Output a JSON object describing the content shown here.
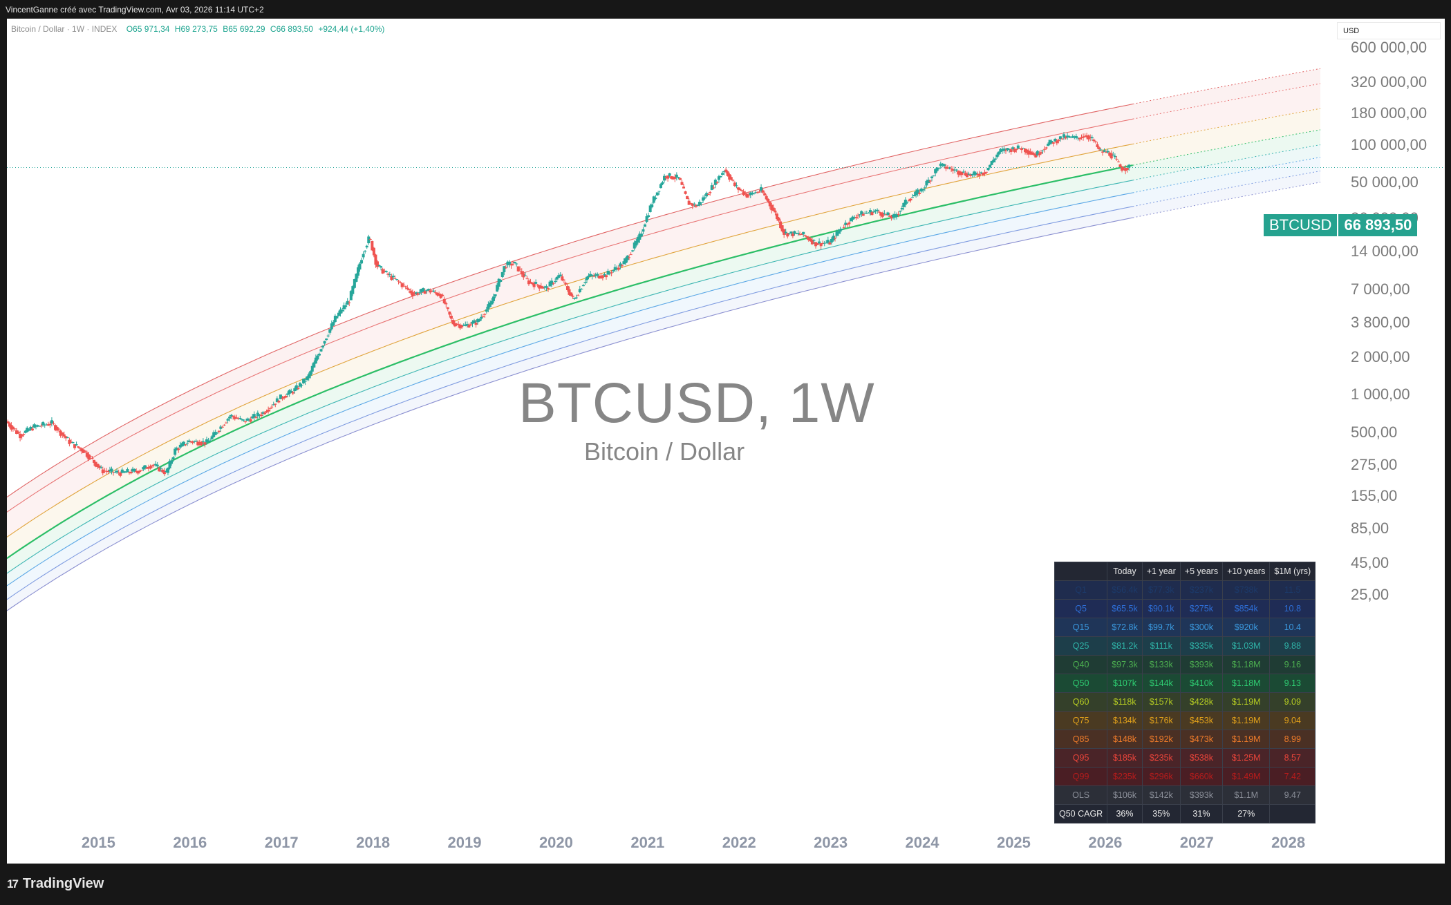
{
  "header": {
    "credit": "VincentGanne créé avec TradingView.com, Avr 03, 2026 11:14 UTC+2"
  },
  "legend": {
    "symbol": "Bitcoin / Dollar · 1W · INDEX",
    "open": "O65 971,34",
    "high": "H69 273,75",
    "low": "B65 692,29",
    "close": "C66 893,50",
    "change": "+924,44 (+1,40%)"
  },
  "currency_button": "USD",
  "watermark": {
    "title": "BTCUSD, 1W",
    "subtitle": "Bitcoin / Dollar"
  },
  "current_price": {
    "symbol": "BTCUSD",
    "value": "66 893,50",
    "color": "#26a69a"
  },
  "footer": {
    "logo_text": "TradingView",
    "logo_mark": "17"
  },
  "chart_data": {
    "type": "candlestick",
    "scale": "log",
    "price_axis_labels": [
      "600 000,00",
      "320 000,00",
      "180 000,00",
      "100 000,00",
      "50 000,00",
      "26 000,00",
      "14 000,00",
      "7 000,00",
      "3 800,00",
      "2 000,00",
      "1 000,00",
      "500,00",
      "275,00",
      "155,00",
      "85,00",
      "45,00",
      "25,00"
    ],
    "time_axis_labels": [
      "2015",
      "2016",
      "2017",
      "2018",
      "2019",
      "2020",
      "2021",
      "2022",
      "2023",
      "2024",
      "2025",
      "2026",
      "2027",
      "2028"
    ],
    "time_range": [
      2014.0,
      2028.35
    ],
    "up_color": "#26a69a",
    "down_color": "#ef5350",
    "price_path": [
      [
        2014.0,
        620
      ],
      [
        2014.15,
        480
      ],
      [
        2014.3,
        560
      ],
      [
        2014.5,
        600
      ],
      [
        2014.7,
        420
      ],
      [
        2014.85,
        360
      ],
      [
        2015.05,
        250
      ],
      [
        2015.25,
        240
      ],
      [
        2015.45,
        250
      ],
      [
        2015.6,
        280
      ],
      [
        2015.75,
        240
      ],
      [
        2015.85,
        370
      ],
      [
        2016.0,
        430
      ],
      [
        2016.2,
        420
      ],
      [
        2016.45,
        690
      ],
      [
        2016.6,
        620
      ],
      [
        2016.8,
        720
      ],
      [
        2017.0,
        960
      ],
      [
        2017.15,
        1100
      ],
      [
        2017.3,
        1400
      ],
      [
        2017.45,
        2500
      ],
      [
        2017.6,
        4200
      ],
      [
        2017.75,
        5800
      ],
      [
        2017.9,
        14000
      ],
      [
        2017.97,
        18500
      ],
      [
        2018.05,
        11000
      ],
      [
        2018.15,
        9500
      ],
      [
        2018.3,
        8000
      ],
      [
        2018.45,
        6500
      ],
      [
        2018.6,
        7000
      ],
      [
        2018.75,
        6400
      ],
      [
        2018.88,
        3800
      ],
      [
        2019.0,
        3600
      ],
      [
        2019.15,
        3900
      ],
      [
        2019.3,
        5500
      ],
      [
        2019.45,
        11000
      ],
      [
        2019.55,
        11500
      ],
      [
        2019.7,
        8200
      ],
      [
        2019.9,
        7200
      ],
      [
        2020.05,
        9200
      ],
      [
        2020.2,
        5800
      ],
      [
        2020.35,
        9000
      ],
      [
        2020.55,
        9200
      ],
      [
        2020.75,
        11500
      ],
      [
        2020.92,
        18500
      ],
      [
        2021.05,
        34000
      ],
      [
        2021.2,
        58000
      ],
      [
        2021.35,
        55000
      ],
      [
        2021.45,
        35000
      ],
      [
        2021.55,
        33000
      ],
      [
        2021.7,
        45000
      ],
      [
        2021.85,
        65000
      ],
      [
        2021.97,
        47000
      ],
      [
        2022.1,
        40000
      ],
      [
        2022.25,
        44000
      ],
      [
        2022.4,
        29000
      ],
      [
        2022.5,
        20000
      ],
      [
        2022.7,
        19500
      ],
      [
        2022.85,
        16500
      ],
      [
        2023.0,
        16800
      ],
      [
        2023.15,
        23000
      ],
      [
        2023.3,
        28000
      ],
      [
        2023.5,
        30000
      ],
      [
        2023.7,
        26500
      ],
      [
        2023.85,
        37000
      ],
      [
        2024.0,
        44000
      ],
      [
        2024.2,
        70000
      ],
      [
        2024.35,
        64000
      ],
      [
        2024.55,
        58000
      ],
      [
        2024.7,
        62000
      ],
      [
        2024.85,
        90000
      ],
      [
        2024.97,
        94000
      ],
      [
        2025.1,
        96000
      ],
      [
        2025.25,
        84000
      ],
      [
        2025.4,
        105000
      ],
      [
        2025.55,
        117000
      ],
      [
        2025.7,
        115000
      ],
      [
        2025.8,
        122000
      ],
      [
        2025.88,
        110000
      ],
      [
        2025.95,
        90000
      ],
      [
        2026.05,
        88000
      ],
      [
        2026.12,
        78000
      ],
      [
        2026.18,
        66000
      ],
      [
        2026.26,
        66893
      ]
    ],
    "bands": [
      {
        "name": "Q1",
        "color": "#8a8fd0",
        "offset": -0.42
      },
      {
        "name": "Q5",
        "color": "#7f9be0",
        "offset": -0.33
      },
      {
        "name": "Q15",
        "color": "#5aa7e6",
        "offset": -0.22
      },
      {
        "name": "Q25",
        "color": "#3bb5b2",
        "offset": -0.12
      },
      {
        "name": "Q50",
        "color": "#2cbe67",
        "offset": 0.0
      },
      {
        "name": "Q75",
        "color": "#e0a33a",
        "offset": 0.17
      },
      {
        "name": "Q95",
        "color": "#e87474",
        "offset": 0.37
      },
      {
        "name": "Q99",
        "color": "#e06363",
        "offset": 0.49
      }
    ],
    "table": {
      "headers": [
        "",
        "Today",
        "+1 year",
        "+5 years",
        "+10 years",
        "$1M (yrs)"
      ],
      "rows": [
        {
          "label": "Q1",
          "color": "#1c3a6a",
          "bg": "#1f2c4e",
          "cells": [
            "$56.4k",
            "$77.3k",
            "$237k",
            "$738k",
            "11.5"
          ]
        },
        {
          "label": "Q5",
          "color": "#2e6fd8",
          "bg": "#1f2c55",
          "cells": [
            "$65.5k",
            "$90.1k",
            "$275k",
            "$854k",
            "10.8"
          ]
        },
        {
          "label": "Q15",
          "color": "#3b9ae0",
          "bg": "#1f3558",
          "cells": [
            "$72.8k",
            "$99.7k",
            "$300k",
            "$920k",
            "10.4"
          ]
        },
        {
          "label": "Q25",
          "color": "#2fb3a7",
          "bg": "#1d3e4a",
          "cells": [
            "$81.2k",
            "$111k",
            "$335k",
            "$1.03M",
            "9.88"
          ]
        },
        {
          "label": "Q40",
          "color": "#4caf50",
          "bg": "#1f3c34",
          "cells": [
            "$97.3k",
            "$133k",
            "$393k",
            "$1.18M",
            "9.16"
          ]
        },
        {
          "label": "Q50",
          "color": "#2ecc71",
          "bg": "#1b4a34",
          "cells": [
            "$107k",
            "$144k",
            "$410k",
            "$1.18M",
            "9.13"
          ]
        },
        {
          "label": "Q60",
          "color": "#b5cc22",
          "bg": "#34402a",
          "cells": [
            "$118k",
            "$157k",
            "$428k",
            "$1.19M",
            "9.09"
          ]
        },
        {
          "label": "Q75",
          "color": "#e3a21a",
          "bg": "#4a3a22",
          "cells": [
            "$134k",
            "$176k",
            "$453k",
            "$1.19M",
            "9.04"
          ]
        },
        {
          "label": "Q85",
          "color": "#f07c2a",
          "bg": "#4a3024",
          "cells": [
            "$148k",
            "$192k",
            "$473k",
            "$1.19M",
            "8.99"
          ]
        },
        {
          "label": "Q95",
          "color": "#e8443a",
          "bg": "#4a2428",
          "cells": [
            "$185k",
            "$235k",
            "$538k",
            "$1.25M",
            "8.57"
          ]
        },
        {
          "label": "Q99",
          "color": "#b71c1c",
          "bg": "#4a1e24",
          "cells": [
            "$235k",
            "$296k",
            "$660k",
            "$1.49M",
            "7.42"
          ]
        },
        {
          "label": "OLS",
          "color": "#8b8f99",
          "bg": "#2c2f38",
          "cells": [
            "$106k",
            "$142k",
            "$393k",
            "$1.1M",
            "9.47"
          ]
        }
      ],
      "footer": {
        "label": "Q50 CAGR",
        "cells": [
          "36%",
          "35%",
          "31%",
          "27%",
          ""
        ]
      }
    }
  }
}
